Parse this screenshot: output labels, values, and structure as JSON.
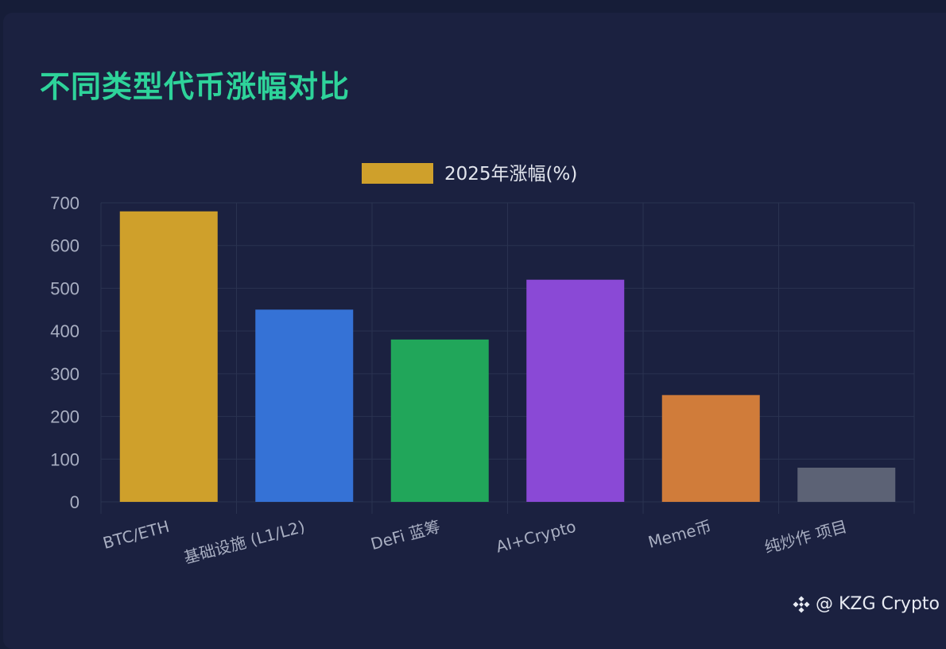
{
  "page": {
    "title": "不同类型代币涨幅对比",
    "watermark": "@ KZG Crypto",
    "watermark_icon": "binance-logo-icon"
  },
  "chart_data": {
    "type": "bar",
    "title": "",
    "xlabel": "",
    "ylabel": "",
    "legend": {
      "position": "top-center"
    },
    "categories": [
      "BTC/ETH",
      "基础设施 (L1/L2)",
      "DeFi 蓝筹",
      "AI+Crypto",
      "Meme币",
      "纯炒作 项目"
    ],
    "series": [
      {
        "name": "2025年涨幅(%)",
        "values": [
          680,
          450,
          380,
          520,
          250,
          80
        ],
        "colors": [
          "#cfa02b",
          "#3572d6",
          "#21a65a",
          "#8a49d6",
          "#d07c3a",
          "#5c6275"
        ],
        "legend_color": "#cfa02b"
      }
    ],
    "ylim": [
      0,
      700
    ],
    "yticks": [
      0,
      100,
      200,
      300,
      400,
      500,
      600,
      700
    ],
    "grid": true
  }
}
